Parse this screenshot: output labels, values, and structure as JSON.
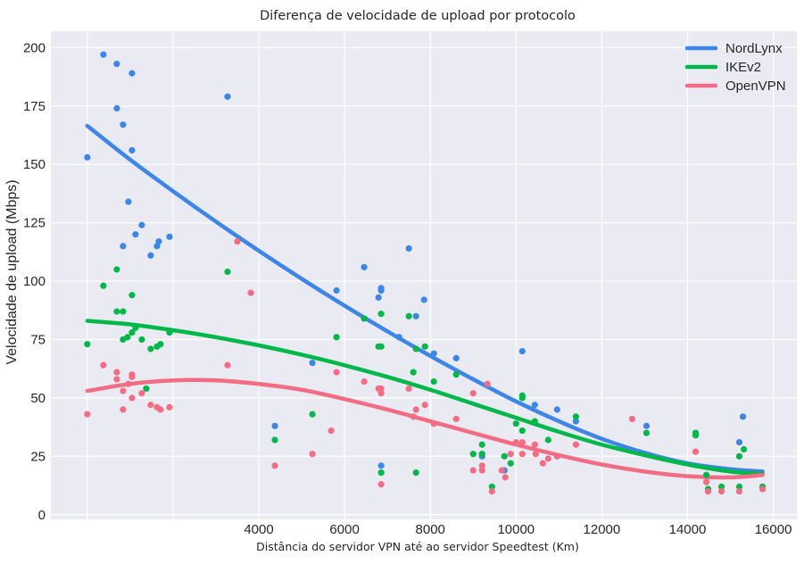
{
  "chart_data": {
    "type": "scatter",
    "title": "Diferença de velocidade de upload por protocolo",
    "xlabel": "Distância do servidor VPN até ao servidor Speedtest (Km)",
    "ylabel": "Velocidade de upload (Mbps)",
    "xlim": [
      -850,
      16550
    ],
    "ylim": [
      -2,
      207
    ],
    "x_gridlines": [
      0,
      2000,
      4000,
      6000,
      8000,
      10000,
      12000,
      14000,
      16000
    ],
    "x_ticks": [
      4000,
      6000,
      8000,
      10000,
      12000,
      14000,
      16000
    ],
    "x_tick_labels": [
      "4000",
      "6000",
      "8000",
      "10000",
      "12000",
      "14000",
      "16000"
    ],
    "y_ticks": [
      0,
      25,
      50,
      75,
      100,
      125,
      150,
      175,
      200
    ],
    "y_tick_labels": [
      "0",
      "25",
      "50",
      "75",
      "100",
      "125",
      "150",
      "175",
      "200"
    ],
    "grid": true,
    "legend_position": "top-right",
    "series": [
      {
        "name": "NordLynx",
        "color": "#3d86e8",
        "points": [
          [
            0,
            153
          ],
          [
            375,
            197
          ],
          [
            688,
            193
          ],
          [
            1042,
            189
          ],
          [
            688,
            174
          ],
          [
            833,
            167
          ],
          [
            1042,
            156
          ],
          [
            3271,
            179
          ],
          [
            958,
            134
          ],
          [
            1271,
            124
          ],
          [
            1125,
            120
          ],
          [
            833,
            115
          ],
          [
            1667,
            117
          ],
          [
            1625,
            115
          ],
          [
            1917,
            119
          ],
          [
            1479,
            111
          ],
          [
            4375,
            38
          ],
          [
            5250,
            65
          ],
          [
            5813,
            96
          ],
          [
            6458,
            106
          ],
          [
            6792,
            93
          ],
          [
            6854,
            97
          ],
          [
            6854,
            96
          ],
          [
            7271,
            76
          ],
          [
            7500,
            114
          ],
          [
            7667,
            85
          ],
          [
            7854,
            92
          ],
          [
            8083,
            69
          ],
          [
            8604,
            67
          ],
          [
            6854,
            21
          ],
          [
            9208,
            26
          ],
          [
            9208,
            25
          ],
          [
            9729,
            19
          ],
          [
            10146,
            70
          ],
          [
            10438,
            47
          ],
          [
            10958,
            45
          ],
          [
            11396,
            40
          ],
          [
            13042,
            38
          ],
          [
            14188,
            35
          ],
          [
            15292,
            42
          ],
          [
            15208,
            31
          ],
          [
            15750,
            11
          ]
        ],
        "fit": [
          [
            0,
            166.5
          ],
          [
            1000,
            152
          ],
          [
            2000,
            138.5
          ],
          [
            3000,
            125.5
          ],
          [
            4000,
            113
          ],
          [
            5000,
            101
          ],
          [
            6000,
            89.5
          ],
          [
            7000,
            78.5
          ],
          [
            8000,
            68
          ],
          [
            9000,
            58
          ],
          [
            10000,
            48.5
          ],
          [
            11000,
            40
          ],
          [
            12000,
            32.5
          ],
          [
            13000,
            26.5
          ],
          [
            14000,
            22
          ],
          [
            15000,
            19.5
          ],
          [
            15750,
            18.5
          ]
        ]
      },
      {
        "name": "IKEv2",
        "color": "#00b84a",
        "points": [
          [
            0,
            73
          ],
          [
            375,
            98
          ],
          [
            688,
            105
          ],
          [
            688,
            87
          ],
          [
            833,
            87
          ],
          [
            833,
            75
          ],
          [
            1042,
            94
          ],
          [
            1042,
            78
          ],
          [
            1125,
            80
          ],
          [
            938,
            76
          ],
          [
            1271,
            75
          ],
          [
            1479,
            71
          ],
          [
            1625,
            72
          ],
          [
            1708,
            73
          ],
          [
            1917,
            78
          ],
          [
            1375,
            54
          ],
          [
            3271,
            104
          ],
          [
            4375,
            32
          ],
          [
            5250,
            43
          ],
          [
            5813,
            76
          ],
          [
            6458,
            84
          ],
          [
            6792,
            72
          ],
          [
            6854,
            72
          ],
          [
            6854,
            86
          ],
          [
            6854,
            18
          ],
          [
            7500,
            85
          ],
          [
            7604,
            61
          ],
          [
            7667,
            71
          ],
          [
            7875,
            72
          ],
          [
            8083,
            57
          ],
          [
            8604,
            60
          ],
          [
            7667,
            18
          ],
          [
            9000,
            26
          ],
          [
            9208,
            30
          ],
          [
            9208,
            26
          ],
          [
            9438,
            12
          ],
          [
            9729,
            25
          ],
          [
            9875,
            22
          ],
          [
            10000,
            39
          ],
          [
            10146,
            51
          ],
          [
            10146,
            50
          ],
          [
            10146,
            36
          ],
          [
            10438,
            40
          ],
          [
            10750,
            32
          ],
          [
            11396,
            42
          ],
          [
            13042,
            35
          ],
          [
            14188,
            34
          ],
          [
            14188,
            35
          ],
          [
            14438,
            17
          ],
          [
            14479,
            11
          ],
          [
            14792,
            12
          ],
          [
            15208,
            25
          ],
          [
            15313,
            28
          ],
          [
            15208,
            12
          ],
          [
            15750,
            12
          ]
        ],
        "fit": [
          [
            0,
            83
          ],
          [
            1000,
            81.5
          ],
          [
            2000,
            79
          ],
          [
            3000,
            76
          ],
          [
            4000,
            72.5
          ],
          [
            5000,
            68.5
          ],
          [
            6000,
            64
          ],
          [
            7000,
            59
          ],
          [
            8000,
            53.5
          ],
          [
            9000,
            47.5
          ],
          [
            10000,
            41.5
          ],
          [
            11000,
            35.5
          ],
          [
            12000,
            30
          ],
          [
            13000,
            25.5
          ],
          [
            14000,
            21.5
          ],
          [
            15000,
            18.5
          ],
          [
            15750,
            17.5
          ]
        ]
      },
      {
        "name": "OpenVPN",
        "color": "#f26d84",
        "points": [
          [
            0,
            43
          ],
          [
            375,
            64
          ],
          [
            688,
            61
          ],
          [
            688,
            58
          ],
          [
            833,
            53
          ],
          [
            833,
            45
          ],
          [
            1042,
            60
          ],
          [
            1042,
            59
          ],
          [
            1042,
            50
          ],
          [
            958,
            56
          ],
          [
            1271,
            52
          ],
          [
            1479,
            47
          ],
          [
            1625,
            46
          ],
          [
            1708,
            45
          ],
          [
            1917,
            46
          ],
          [
            3271,
            64
          ],
          [
            3500,
            117
          ],
          [
            3813,
            95
          ],
          [
            4375,
            21
          ],
          [
            5250,
            26
          ],
          [
            5813,
            61
          ],
          [
            5688,
            36
          ],
          [
            6458,
            57
          ],
          [
            6792,
            54
          ],
          [
            6854,
            54
          ],
          [
            6854,
            52
          ],
          [
            6854,
            13
          ],
          [
            7500,
            54
          ],
          [
            7604,
            42
          ],
          [
            7667,
            45
          ],
          [
            7875,
            47
          ],
          [
            8083,
            39
          ],
          [
            8604,
            41
          ],
          [
            9000,
            52
          ],
          [
            9000,
            19
          ],
          [
            9208,
            21
          ],
          [
            9208,
            19
          ],
          [
            9438,
            10
          ],
          [
            9333,
            56
          ],
          [
            9667,
            19
          ],
          [
            9750,
            16
          ],
          [
            9875,
            26
          ],
          [
            10000,
            31
          ],
          [
            10146,
            31
          ],
          [
            10146,
            26
          ],
          [
            10438,
            30
          ],
          [
            10458,
            26
          ],
          [
            10625,
            22
          ],
          [
            10750,
            24
          ],
          [
            10958,
            25
          ],
          [
            11396,
            30
          ],
          [
            12708,
            41
          ],
          [
            14188,
            27
          ],
          [
            14438,
            14
          ],
          [
            14479,
            10
          ],
          [
            14792,
            10
          ],
          [
            15208,
            10
          ],
          [
            15750,
            11
          ]
        ],
        "fit": [
          [
            0,
            53
          ],
          [
            1000,
            56
          ],
          [
            2000,
            57.5
          ],
          [
            3000,
            57.5
          ],
          [
            4000,
            56
          ],
          [
            5000,
            53.5
          ],
          [
            6000,
            49.5
          ],
          [
            7000,
            45
          ],
          [
            8000,
            40
          ],
          [
            9000,
            35
          ],
          [
            10000,
            30
          ],
          [
            11000,
            25.5
          ],
          [
            12000,
            21.5
          ],
          [
            13000,
            18.5
          ],
          [
            14000,
            16.5
          ],
          [
            15000,
            16
          ],
          [
            15750,
            17
          ]
        ]
      }
    ]
  }
}
